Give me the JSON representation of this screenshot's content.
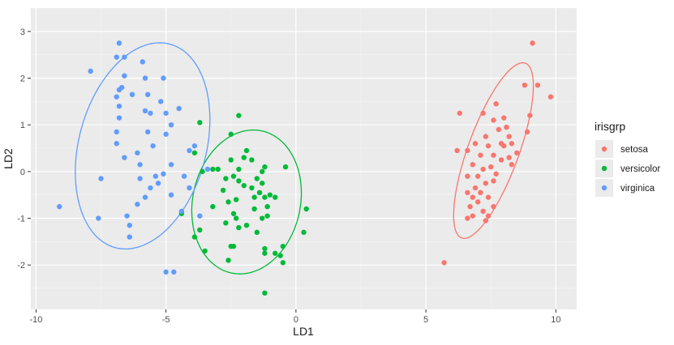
{
  "chart_data": {
    "type": "scatter",
    "xlabel": "LD1",
    "ylabel": "LD2",
    "xlim": [
      -10.2,
      10.8
    ],
    "ylim": [
      -2.95,
      3.5
    ],
    "x_ticks": [
      -10,
      -5,
      0,
      5,
      10
    ],
    "x_tick_labels": [
      "-10",
      "-5",
      "0",
      "5",
      "10"
    ],
    "y_ticks": [
      -2,
      -1,
      0,
      1,
      2,
      3
    ],
    "y_tick_labels": [
      "-2",
      "-1",
      "0",
      "1",
      "2",
      "3"
    ],
    "grid": true,
    "legend": {
      "title": "irisgrp",
      "position": "right"
    },
    "series": [
      {
        "name": "setosa",
        "color": "#F8766D",
        "points": [
          [
            9.1,
            2.75
          ],
          [
            9.3,
            1.85
          ],
          [
            9.8,
            1.6
          ],
          [
            8.8,
            1.85
          ],
          [
            7.2,
            1.25
          ],
          [
            6.3,
            1.25
          ],
          [
            7.7,
            1.45
          ],
          [
            9.0,
            1.2
          ],
          [
            7.6,
            1.1
          ],
          [
            8.0,
            1.15
          ],
          [
            8.1,
            0.95
          ],
          [
            7.8,
            0.9
          ],
          [
            8.9,
            0.85
          ],
          [
            7.3,
            0.75
          ],
          [
            7.9,
            0.6
          ],
          [
            8.2,
            0.75
          ],
          [
            6.6,
            0.45
          ],
          [
            6.9,
            0.6
          ],
          [
            8.0,
            0.55
          ],
          [
            7.4,
            0.55
          ],
          [
            8.3,
            0.6
          ],
          [
            6.2,
            0.45
          ],
          [
            7.1,
            0.35
          ],
          [
            7.6,
            0.35
          ],
          [
            8.5,
            0.4
          ],
          [
            7.9,
            0.25
          ],
          [
            8.2,
            0.3
          ],
          [
            6.8,
            0.15
          ],
          [
            7.5,
            0.1
          ],
          [
            7.2,
            0.05
          ],
          [
            8.3,
            0.15
          ],
          [
            7.7,
            -0.05
          ],
          [
            7.0,
            -0.1
          ],
          [
            6.6,
            -0.1
          ],
          [
            7.6,
            -0.2
          ],
          [
            7.3,
            -0.25
          ],
          [
            6.9,
            -0.35
          ],
          [
            7.1,
            -0.45
          ],
          [
            6.6,
            -0.45
          ],
          [
            7.4,
            -0.55
          ],
          [
            6.8,
            -0.55
          ],
          [
            7.0,
            -0.65
          ],
          [
            6.7,
            -0.75
          ],
          [
            7.6,
            -0.75
          ],
          [
            7.2,
            -0.85
          ],
          [
            6.8,
            -0.95
          ],
          [
            7.4,
            -0.95
          ],
          [
            7.3,
            -1.05
          ],
          [
            6.6,
            -1.0
          ],
          [
            5.7,
            -1.95
          ]
        ]
      },
      {
        "name": "versicolor",
        "color": "#00BA38",
        "points": [
          [
            -2.2,
            1.2
          ],
          [
            -3.7,
            1.05
          ],
          [
            -2.5,
            0.8
          ],
          [
            -3.9,
            0.4
          ],
          [
            -1.9,
            0.45
          ],
          [
            -2.0,
            0.3
          ],
          [
            -1.7,
            0.25
          ],
          [
            -2.5,
            0.25
          ],
          [
            -3.2,
            0.05
          ],
          [
            -3.0,
            0.05
          ],
          [
            -2.2,
            0.05
          ],
          [
            -1.2,
            0.1
          ],
          [
            -0.4,
            0.1
          ],
          [
            -1.3,
            0.0
          ],
          [
            -3.6,
            0.0
          ],
          [
            -2.4,
            -0.1
          ],
          [
            -2.7,
            -0.15
          ],
          [
            -1.5,
            -0.15
          ],
          [
            -2.2,
            -0.2
          ],
          [
            -1.3,
            -0.25
          ],
          [
            -2.0,
            -0.3
          ],
          [
            -1.7,
            -0.35
          ],
          [
            -2.8,
            -0.4
          ],
          [
            -1.4,
            -0.45
          ],
          [
            -1.0,
            -0.5
          ],
          [
            -1.2,
            -0.55
          ],
          [
            -1.6,
            -0.55
          ],
          [
            -0.8,
            -0.55
          ],
          [
            -2.3,
            -0.6
          ],
          [
            -2.6,
            -0.65
          ],
          [
            -3.2,
            -0.75
          ],
          [
            -1.1,
            -0.75
          ],
          [
            -1.6,
            -0.8
          ],
          [
            0.4,
            -0.8
          ],
          [
            -2.4,
            -0.9
          ],
          [
            -1.1,
            -0.95
          ],
          [
            -4.4,
            -0.9
          ],
          [
            -2.3,
            -1.0
          ],
          [
            -1.3,
            -1.0
          ],
          [
            -2.7,
            -1.1
          ],
          [
            -1.9,
            -1.15
          ],
          [
            -2.2,
            -1.2
          ],
          [
            -3.7,
            -1.25
          ],
          [
            -1.5,
            -1.3
          ],
          [
            -3.9,
            -1.4
          ],
          [
            0.3,
            -1.3
          ],
          [
            -2.5,
            -1.6
          ],
          [
            -2.4,
            -1.6
          ],
          [
            -1.2,
            -1.65
          ],
          [
            -0.5,
            -1.6
          ],
          [
            -3.5,
            -1.7
          ],
          [
            -1.2,
            -1.75
          ],
          [
            -0.8,
            -1.75
          ],
          [
            -0.6,
            -1.8
          ],
          [
            -2.6,
            -1.9
          ],
          [
            -0.5,
            -1.95
          ],
          [
            -1.2,
            -2.6
          ]
        ]
      },
      {
        "name": "virginica",
        "color": "#619CFF",
        "points": [
          [
            -6.8,
            2.75
          ],
          [
            -6.9,
            2.45
          ],
          [
            -6.6,
            2.45
          ],
          [
            -5.9,
            2.35
          ],
          [
            -7.9,
            2.15
          ],
          [
            -6.6,
            2.05
          ],
          [
            -5.8,
            2.0
          ],
          [
            -5.1,
            2.0
          ],
          [
            -6.7,
            1.8
          ],
          [
            -6.8,
            1.75
          ],
          [
            -6.9,
            1.6
          ],
          [
            -6.3,
            1.65
          ],
          [
            -5.7,
            1.65
          ],
          [
            -5.2,
            1.5
          ],
          [
            -6.8,
            1.4
          ],
          [
            -5.8,
            1.3
          ],
          [
            -5.6,
            1.25
          ],
          [
            -4.5,
            1.35
          ],
          [
            -6.8,
            1.15
          ],
          [
            -5.0,
            1.25
          ],
          [
            -5.7,
            0.85
          ],
          [
            -6.9,
            0.85
          ],
          [
            -4.8,
            1.0
          ],
          [
            -5.0,
            0.8
          ],
          [
            -6.9,
            0.6
          ],
          [
            -3.9,
            0.55
          ],
          [
            -6.6,
            0.3
          ],
          [
            -6.1,
            0.4
          ],
          [
            -5.5,
            0.55
          ],
          [
            -4.1,
            0.45
          ],
          [
            -6.0,
            0.15
          ],
          [
            -4.8,
            0.15
          ],
          [
            -3.4,
            0.05
          ],
          [
            -5.4,
            -0.1
          ],
          [
            -6.0,
            -0.15
          ],
          [
            -5.1,
            -0.05
          ],
          [
            -7.5,
            -0.15
          ],
          [
            -4.3,
            -0.1
          ],
          [
            -5.3,
            -0.25
          ],
          [
            -5.6,
            -0.35
          ],
          [
            -4.1,
            -0.35
          ],
          [
            -5.8,
            -0.55
          ],
          [
            -4.8,
            -0.5
          ],
          [
            -6.1,
            -0.7
          ],
          [
            -4.4,
            -0.85
          ],
          [
            -9.1,
            -0.75
          ],
          [
            -6.5,
            -0.95
          ],
          [
            -7.6,
            -1.0
          ],
          [
            -3.7,
            -0.95
          ],
          [
            -6.4,
            -1.15
          ],
          [
            -6.4,
            -1.4
          ],
          [
            -5.0,
            -2.15
          ],
          [
            -4.7,
            -2.15
          ]
        ]
      }
    ],
    "ellipses": [
      {
        "series": "setosa",
        "center": [
          7.6,
          0.45
        ],
        "semi_major": 2.56,
        "semi_minor": 0.7,
        "angle_deg": 70
      },
      {
        "series": "versicolor",
        "center": [
          -1.9,
          -0.65
        ],
        "semi_major": 2.0,
        "semi_minor": 1.48,
        "angle_deg": 78
      },
      {
        "series": "virginica",
        "center": [
          -5.9,
          0.55
        ],
        "semi_major": 2.9,
        "semi_minor": 1.75,
        "angle_deg": 75
      }
    ]
  }
}
